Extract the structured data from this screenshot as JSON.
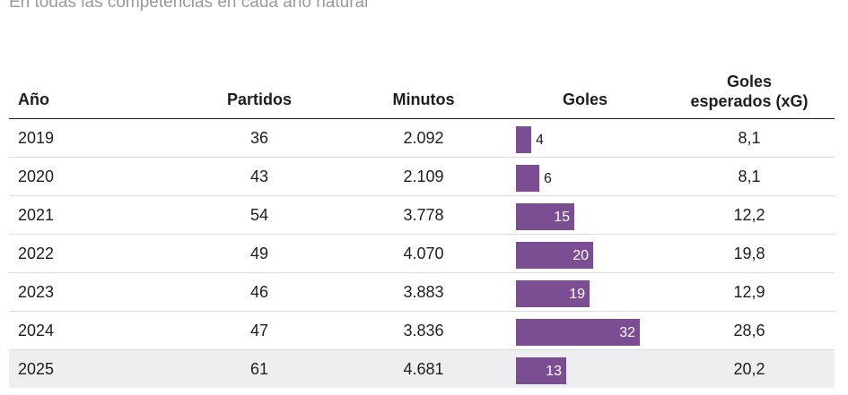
{
  "subtitle": "En todas las competencias en cada año natural",
  "chart_data": {
    "type": "table",
    "columns": [
      "Año",
      "Partidos",
      "Minutos",
      "Goles",
      "Goles esperados (xG)"
    ],
    "header_lines": {
      "xg_line1": "Goles",
      "xg_line2": "esperados (xG)"
    },
    "rows": [
      {
        "year": "2019",
        "partidos": "36",
        "minutos": "2.092",
        "goles": 4,
        "goles_label": "4",
        "xg": "8,1"
      },
      {
        "year": "2020",
        "partidos": "43",
        "minutos": "2.109",
        "goles": 6,
        "goles_label": "6",
        "xg": "8,1"
      },
      {
        "year": "2021",
        "partidos": "54",
        "minutos": "3.778",
        "goles": 15,
        "goles_label": "15",
        "xg": "12,2"
      },
      {
        "year": "2022",
        "partidos": "49",
        "minutos": "4.070",
        "goles": 20,
        "goles_label": "20",
        "xg": "19,8"
      },
      {
        "year": "2023",
        "partidos": "46",
        "minutos": "3.883",
        "goles": 19,
        "goles_label": "19",
        "xg": "12,9"
      },
      {
        "year": "2024",
        "partidos": "47",
        "minutos": "3.836",
        "goles": 32,
        "goles_label": "32",
        "xg": "28,6"
      },
      {
        "year": "2025",
        "partidos": "61",
        "minutos": "4.681",
        "goles": 13,
        "goles_label": "13",
        "xg": "20,2"
      }
    ],
    "highlighted_row": "2025",
    "bar_max": 32,
    "colors": {
      "bar": "#7b4e93",
      "highlight_row": "#eceef0",
      "subtitle": "#9a9a9a"
    }
  }
}
